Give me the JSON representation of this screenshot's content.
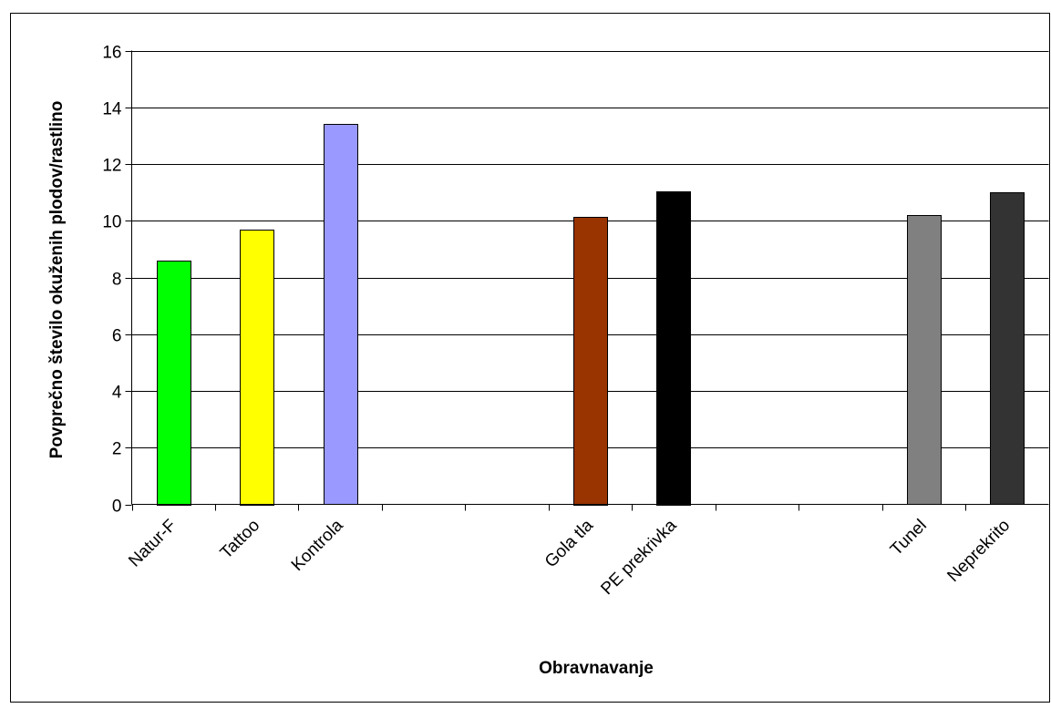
{
  "chart_data": {
    "type": "bar",
    "title": "",
    "xlabel": "Obravnavanje",
    "ylabel": "Povprečno število okuženih plodov/rastlino",
    "ylim": [
      0,
      16
    ],
    "yticks": [
      0,
      2,
      4,
      6,
      8,
      10,
      12,
      14,
      16
    ],
    "grid": true,
    "legend": "none",
    "slots": [
      "Natur-F",
      "Tattoo",
      "Kontrola",
      "",
      "",
      "Gola tla",
      "PE prekrivka",
      "",
      "",
      "Tunel",
      "Neprekrito"
    ],
    "categories": [
      "Natur-F",
      "Tattoo",
      "Kontrola",
      "Gola tla",
      "PE prekrivka",
      "Tunel",
      "Neprekrito"
    ],
    "values": [
      8.6,
      9.7,
      13.4,
      10.15,
      11.05,
      10.2,
      11.0
    ],
    "colors": [
      "#00ff00",
      "#ffff00",
      "#9999ff",
      "#993300",
      "#000000",
      "#808080",
      "#333333"
    ]
  }
}
